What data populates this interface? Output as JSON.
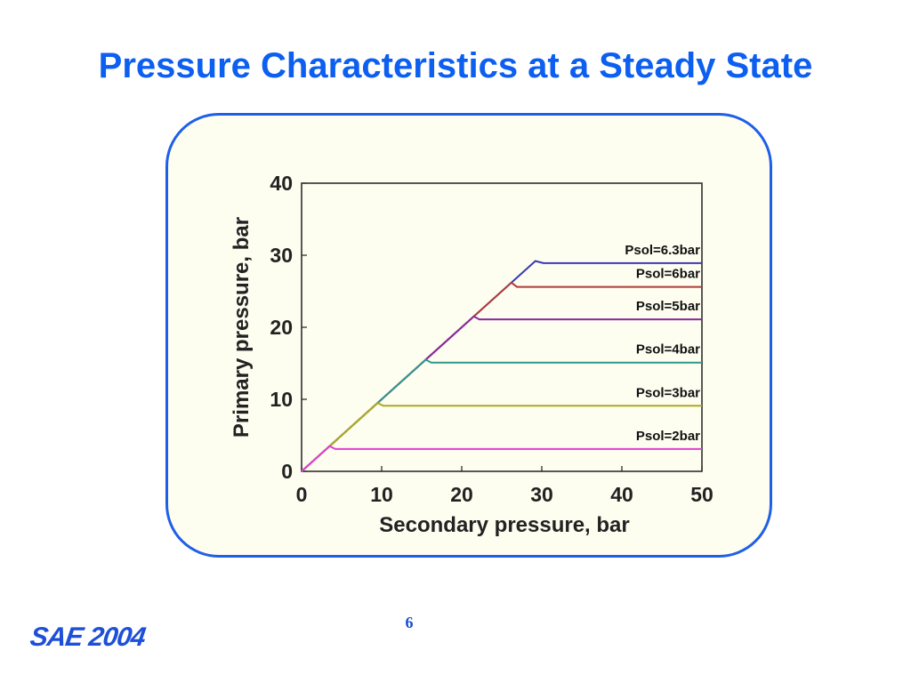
{
  "title": "Pressure Characteristics at a Steady State",
  "page_number": "6",
  "logo_text": "SAE 2004",
  "colors": {
    "title": "#0c5ff0",
    "frame_border": "#1f5fe8",
    "frame_fill": "#fdfdf0"
  },
  "chart_data": {
    "type": "line",
    "xlabel": "Secondary pressure, bar",
    "ylabel": "Primary pressure, bar",
    "xlim": [
      0,
      50
    ],
    "ylim": [
      0,
      40
    ],
    "x_ticks": [
      0,
      10,
      20,
      30,
      40,
      50
    ],
    "y_ticks": [
      0,
      10,
      20,
      30,
      40
    ],
    "grid": false,
    "series": [
      {
        "name": "Psol=6.3bar",
        "color": "#3a3ab0",
        "points": [
          [
            0,
            0
          ],
          [
            29.2,
            29.2
          ],
          [
            30.2,
            28.9
          ],
          [
            50,
            28.9
          ]
        ]
      },
      {
        "name": "Psol=6bar",
        "color": "#b03a3a",
        "points": [
          [
            0,
            0
          ],
          [
            26.2,
            26.2
          ],
          [
            26.9,
            25.6
          ],
          [
            50,
            25.6
          ]
        ]
      },
      {
        "name": "Psol=5bar",
        "color": "#8a2a9a",
        "points": [
          [
            0,
            0
          ],
          [
            21.5,
            21.5
          ],
          [
            22.2,
            21.1
          ],
          [
            50,
            21.1
          ]
        ]
      },
      {
        "name": "Psol=4bar",
        "color": "#2e9a8a",
        "points": [
          [
            0,
            0
          ],
          [
            15.5,
            15.5
          ],
          [
            16.2,
            15.1
          ],
          [
            50,
            15.1
          ]
        ]
      },
      {
        "name": "Psol=3bar",
        "color": "#aaaa22",
        "points": [
          [
            0,
            0
          ],
          [
            9.5,
            9.5
          ],
          [
            10.2,
            9.1
          ],
          [
            50,
            9.1
          ]
        ]
      },
      {
        "name": "Psol=2bar",
        "color": "#e040d0",
        "points": [
          [
            0,
            0
          ],
          [
            3.5,
            3.5
          ],
          [
            4.2,
            3.1
          ],
          [
            50,
            3.1
          ]
        ]
      }
    ]
  }
}
